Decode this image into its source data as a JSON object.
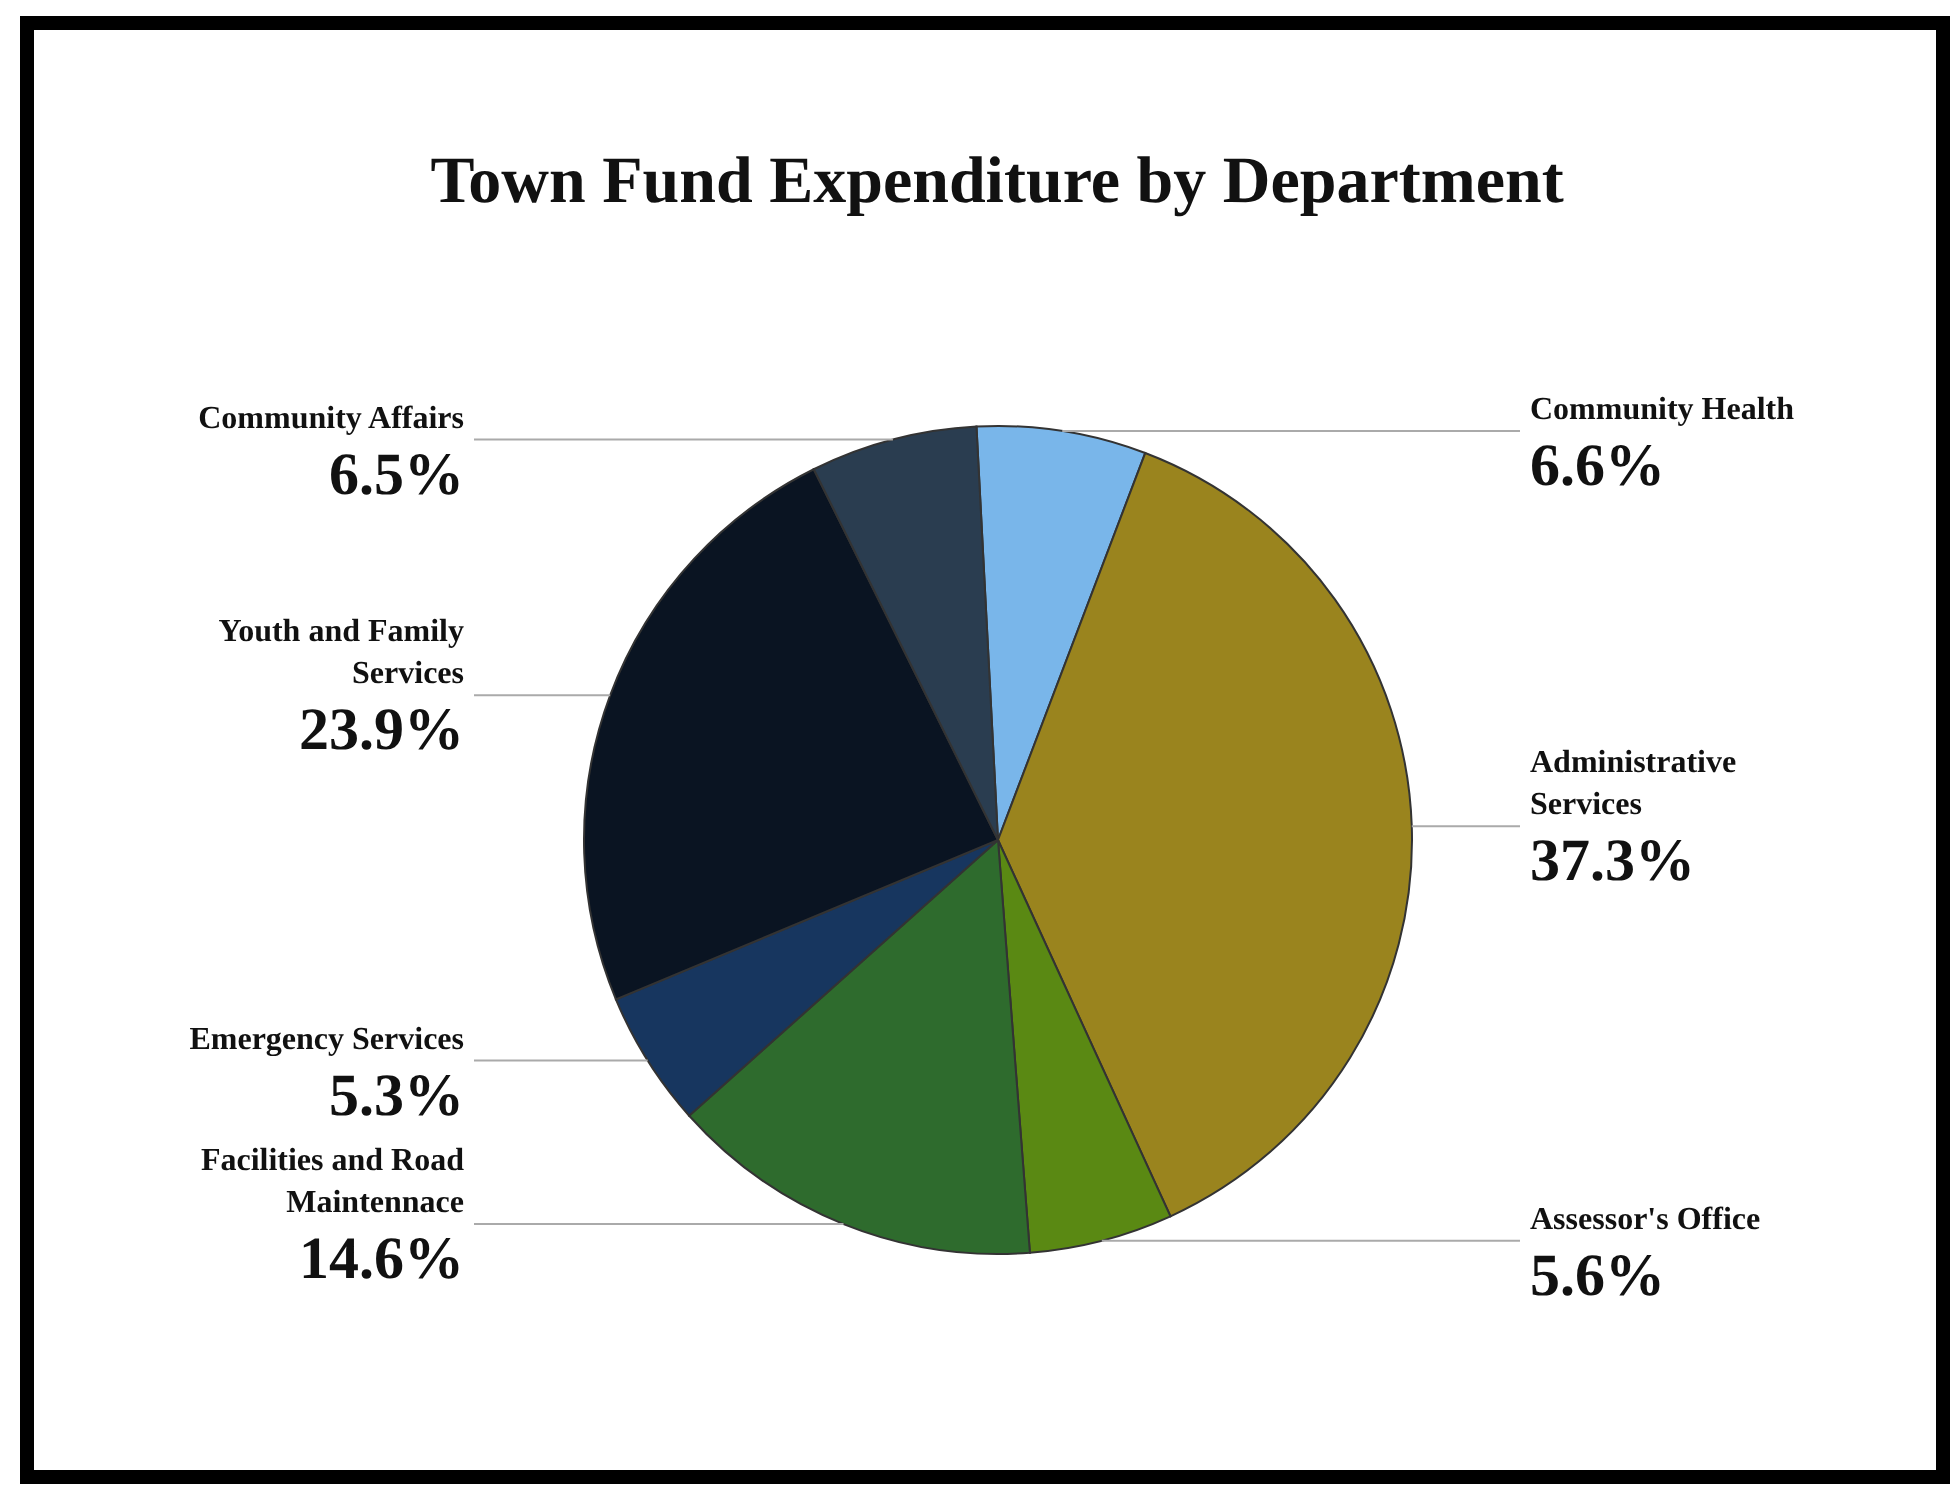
{
  "chart_data": {
    "type": "pie",
    "title": "Town Fund Expenditure by Department",
    "categories": [
      "Community Health",
      "Administrative Services",
      "Assessor's Office",
      "Facilities and Road Maintennace",
      "Emergency Services",
      "Youth and Family Services",
      "Community Affairs"
    ],
    "values": [
      6.6,
      37.3,
      5.6,
      14.6,
      5.3,
      23.9,
      6.5
    ],
    "value_labels": [
      "6.6%",
      "37.3%",
      "5.6%",
      "14.6%",
      "5.3%",
      "23.9%",
      "6.5%"
    ],
    "colors": [
      "#79b6ea",
      "#9a841e",
      "#5a8913",
      "#2e6b2d",
      "#17365f",
      "#0a1422",
      "#2a3d50"
    ],
    "legend": false
  }
}
